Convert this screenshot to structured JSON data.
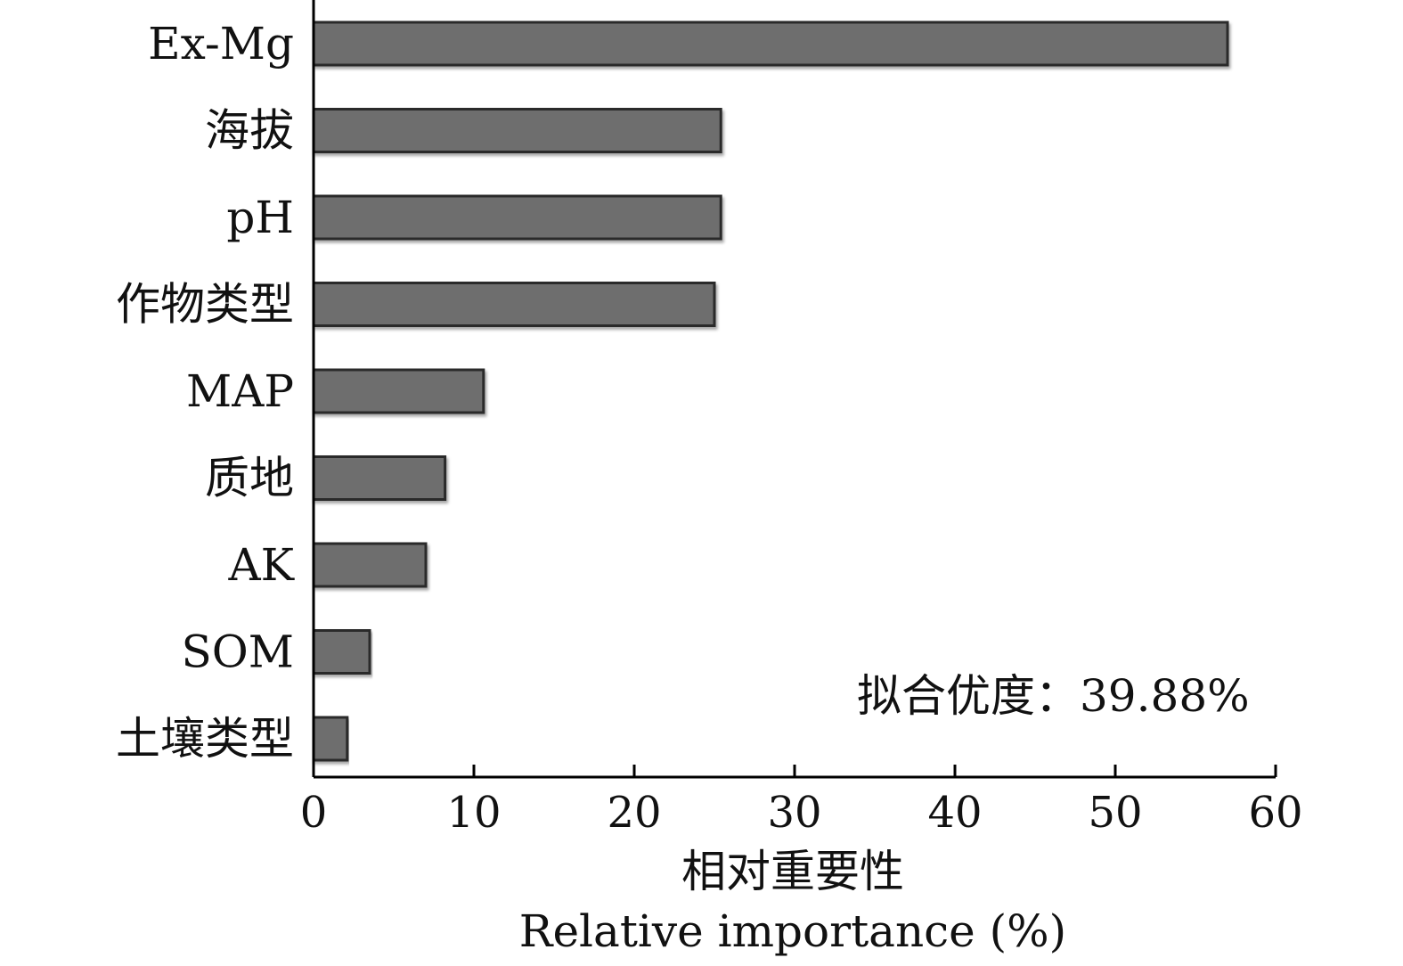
{
  "chart_data": {
    "type": "bar",
    "orientation": "horizontal",
    "categories": [
      "Ex-Mg",
      "海拔",
      "pH",
      "作物类型",
      "MAP",
      "质地",
      "AK",
      "SOM",
      "土壤类型"
    ],
    "values": [
      57.0,
      25.4,
      25.4,
      25.0,
      10.6,
      8.2,
      7.0,
      3.5,
      2.1
    ],
    "xlim": [
      0,
      60
    ],
    "xticks": [
      "0",
      "10",
      "20",
      "30",
      "40",
      "50",
      "60"
    ],
    "xlabel_cn": "相对重要性",
    "xlabel_en": "Relative importance (%)",
    "annotation": "拟合优度：39.88%",
    "bar_color": "#6e6e6e",
    "bar_edge_color": "#2a2a2a",
    "grid": false,
    "legend": "none"
  }
}
